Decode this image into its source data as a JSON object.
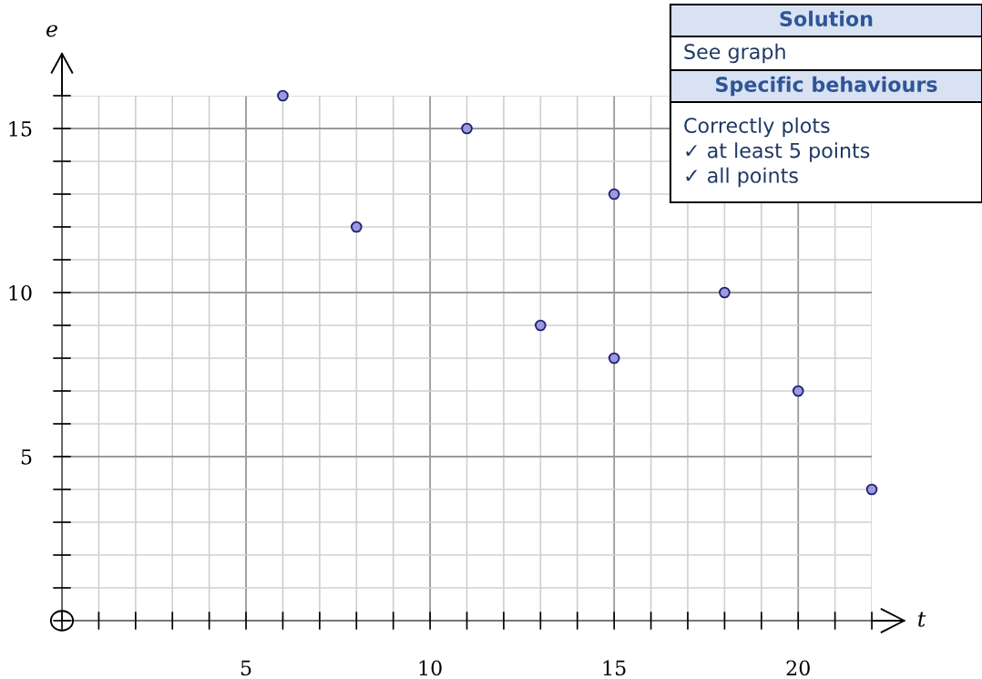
{
  "chart_data": {
    "type": "scatter",
    "xlabel": "t",
    "ylabel": "e",
    "x": [
      6,
      8,
      11,
      13,
      15,
      15,
      18,
      20,
      22
    ],
    "series": [
      {
        "color": "#9b9bd9",
        "values": [
          16,
          12,
          15,
          9,
          13,
          8,
          10,
          7,
          4
        ]
      }
    ],
    "xlim": [
      0,
      22
    ],
    "ylim": [
      0,
      16
    ],
    "xticks": [
      5,
      10,
      15,
      20
    ],
    "yticks": [
      5,
      10,
      15
    ],
    "grid": true,
    "marker": "circle",
    "annotations": [
      "Solution",
      "See graph",
      "Specific behaviours",
      "Correctly plots\n✓ at least 5 points\n✓ all points"
    ]
  }
}
